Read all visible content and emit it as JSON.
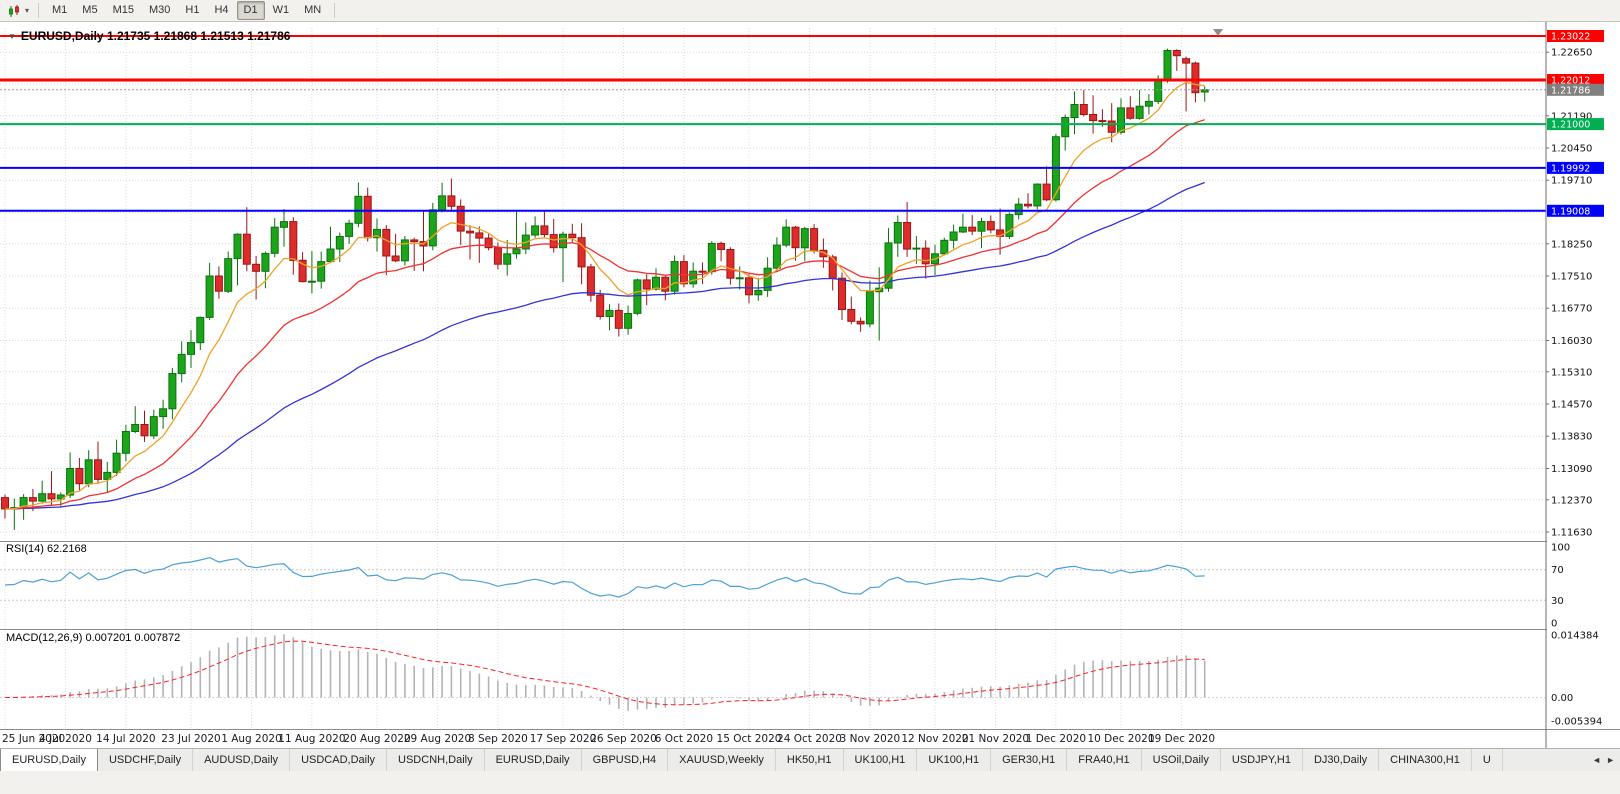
{
  "toolbar": {
    "timeframes": [
      "M1",
      "M5",
      "M15",
      "M30",
      "H1",
      "H4",
      "D1",
      "W1",
      "MN"
    ],
    "active_timeframe": "D1"
  },
  "glyphs": {
    "caret": "▾",
    "symbol_triangle": "▼",
    "tab_left": "◄",
    "tab_right": "►"
  },
  "chart_data": {
    "type": "candlestick",
    "symbol": "EURUSD",
    "timeframe": "Daily",
    "header": "EURUSD,Daily 1.21735 1.21868 1.21513 1.21786",
    "ohlc": {
      "open": "1.21735",
      "high": "1.21868",
      "low": "1.21513",
      "close": "1.21786"
    },
    "ylim": [
      1.11447,
      1.23206
    ],
    "y_ticks": [
      "1.22650",
      "1.21190",
      "1.20450",
      "1.19710",
      "1.18250",
      "1.17510",
      "1.16770",
      "1.16030",
      "1.15310",
      "1.14570",
      "1.13830",
      "1.13090",
      "1.12370",
      "1.11630"
    ],
    "y_grid_extra": [
      1.2192,
      1.1897
    ],
    "x_labels": [
      {
        "text": "25 Jun 2020",
        "bar": 0
      },
      {
        "text": "4 Jul 2020",
        "bar": 6.5
      },
      {
        "text": "14 Jul 2020",
        "bar": 13
      },
      {
        "text": "23 Jul 2020",
        "bar": 20
      },
      {
        "text": "1 Aug 2020",
        "bar": 26.5
      },
      {
        "text": "11 Aug 2020",
        "bar": 33
      },
      {
        "text": "20 Aug 2020",
        "bar": 40
      },
      {
        "text": "29 Aug 2020",
        "bar": 46.5
      },
      {
        "text": "8 Sep 2020",
        "bar": 53
      },
      {
        "text": "17 Sep 2020",
        "bar": 60
      },
      {
        "text": "26 Sep 2020",
        "bar": 66.5
      },
      {
        "text": "6 Oct 2020",
        "bar": 73
      },
      {
        "text": "15 Oct 2020",
        "bar": 80
      },
      {
        "text": "24 Oct 2020",
        "bar": 86.5
      },
      {
        "text": "3 Nov 2020",
        "bar": 93
      },
      {
        "text": "12 Nov 2020",
        "bar": 100
      },
      {
        "text": "21 Nov 2020",
        "bar": 106.5
      },
      {
        "text": "1 Dec 2020",
        "bar": 113
      },
      {
        "text": "10 Dec 2020",
        "bar": 120
      },
      {
        "text": "19 Dec 2020",
        "bar": 126.5
      }
    ],
    "hlines": [
      {
        "label": "1.23022",
        "value": 1.23022,
        "color": "#ff0000",
        "width": 2,
        "style": "solid"
      },
      {
        "label": "1.22012",
        "value": 1.22012,
        "color": "#ff0000",
        "width": 3,
        "style": "solid"
      },
      {
        "label": "1.21786",
        "value": 1.21786,
        "color": "#808080",
        "width": 1,
        "style": "bid"
      },
      {
        "label": "1.21000",
        "value": 1.21,
        "color": "#00b050",
        "width": 2,
        "style": "solid"
      },
      {
        "label": "1.19992",
        "value": 1.19992,
        "color": "#0000ff",
        "width": 2,
        "style": "solid"
      },
      {
        "label": "1.19008",
        "value": 1.19008,
        "color": "#0000ff",
        "width": 2,
        "style": "solid"
      }
    ],
    "moving_averages": [
      {
        "name": "ma-slow",
        "period": 55,
        "color": "#3434d6"
      },
      {
        "name": "ma-medium",
        "period": 21,
        "color": "#f23131"
      },
      {
        "name": "ma-fast",
        "period": 8,
        "color": "#efa229"
      }
    ],
    "candle_colors": {
      "bull_fill": "#1ca51c",
      "bull_stroke": "#0b720b",
      "bear_fill": "#dd2c2c",
      "bear_stroke": "#9b1515"
    },
    "rsi": {
      "label": "RSI(14) 62.2168",
      "value": "62.2168",
      "period": 14,
      "color": "#4aa0d5",
      "levels": [
        70,
        30
      ],
      "ylim": [
        -5,
        105
      ],
      "ticks": [
        {
          "label": "100",
          "value": 100
        },
        {
          "label": "70",
          "value": 70
        },
        {
          "label": "30",
          "value": 30
        },
        {
          "label": "0",
          "value": 0
        }
      ]
    },
    "macd": {
      "label": "MACD(12,26,9) 0.007201 0.007872",
      "main": "0.007201",
      "signal": "0.007872",
      "fast": 12,
      "slow": 26,
      "signal_period": 9,
      "hist_color": "#b3b3b3",
      "signal_color": "#ff2020",
      "ylim": [
        -0.00701,
        0.01507
      ],
      "ticks": [
        {
          "label": "0.014384",
          "value": 0.014384
        },
        {
          "label": "0.00",
          "value": 0
        },
        {
          "label": "-0.005394",
          "value": -0.005394
        }
      ]
    },
    "candles": [
      [
        1.1242,
        1.1249,
        1.1194,
        1.1216
      ],
      [
        1.1216,
        1.124,
        1.1168,
        1.1219
      ],
      [
        1.1219,
        1.125,
        1.1191,
        1.1242
      ],
      [
        1.1242,
        1.1262,
        1.1211,
        1.1234
      ],
      [
        1.1234,
        1.1281,
        1.1228,
        1.1251
      ],
      [
        1.1251,
        1.1303,
        1.1223,
        1.1239
      ],
      [
        1.1239,
        1.1254,
        1.1219,
        1.1248
      ],
      [
        1.1248,
        1.1346,
        1.1241,
        1.1309
      ],
      [
        1.1309,
        1.1333,
        1.1259,
        1.1274
      ],
      [
        1.1274,
        1.1351,
        1.1266,
        1.1329
      ],
      [
        1.1329,
        1.1371,
        1.1276,
        1.1284
      ],
      [
        1.1284,
        1.1324,
        1.1254,
        1.13
      ],
      [
        1.13,
        1.1375,
        1.1292,
        1.1344
      ],
      [
        1.1344,
        1.1409,
        1.1325,
        1.1394
      ],
      [
        1.1394,
        1.1452,
        1.139,
        1.141
      ],
      [
        1.141,
        1.1442,
        1.137,
        1.1384
      ],
      [
        1.1384,
        1.1444,
        1.1377,
        1.1428
      ],
      [
        1.1428,
        1.1467,
        1.14,
        1.1446
      ],
      [
        1.1446,
        1.154,
        1.1422,
        1.1527
      ],
      [
        1.1527,
        1.1601,
        1.1507,
        1.1571
      ],
      [
        1.1571,
        1.1627,
        1.154,
        1.1598
      ],
      [
        1.1598,
        1.1658,
        1.1581,
        1.1656
      ],
      [
        1.1656,
        1.1781,
        1.165,
        1.1751
      ],
      [
        1.1751,
        1.1773,
        1.1699,
        1.1716
      ],
      [
        1.1716,
        1.1807,
        1.1712,
        1.1791
      ],
      [
        1.1791,
        1.1849,
        1.173,
        1.1847
      ],
      [
        1.1847,
        1.1909,
        1.1762,
        1.1778
      ],
      [
        1.1778,
        1.1797,
        1.1697,
        1.1762
      ],
      [
        1.1762,
        1.1807,
        1.1723,
        1.1803
      ],
      [
        1.1803,
        1.1884,
        1.1794,
        1.1863
      ],
      [
        1.1863,
        1.1905,
        1.1818,
        1.1876
      ],
      [
        1.1876,
        1.1886,
        1.1754,
        1.1787
      ],
      [
        1.1787,
        1.1806,
        1.1736,
        1.1738
      ],
      [
        1.1738,
        1.1808,
        1.1711,
        1.1739
      ],
      [
        1.1739,
        1.1807,
        1.1722,
        1.1784
      ],
      [
        1.1784,
        1.1864,
        1.1782,
        1.1813
      ],
      [
        1.1813,
        1.1851,
        1.1783,
        1.1842
      ],
      [
        1.1842,
        1.188,
        1.1825,
        1.1872
      ],
      [
        1.1872,
        1.1966,
        1.1863,
        1.1934
      ],
      [
        1.1934,
        1.1954,
        1.183,
        1.1839
      ],
      [
        1.1839,
        1.1883,
        1.1807,
        1.1858
      ],
      [
        1.1858,
        1.1868,
        1.1753,
        1.1797
      ],
      [
        1.1797,
        1.1848,
        1.1783,
        1.1786
      ],
      [
        1.1786,
        1.1843,
        1.1775,
        1.1834
      ],
      [
        1.1834,
        1.1839,
        1.1763,
        1.183
      ],
      [
        1.183,
        1.19,
        1.1762,
        1.182
      ],
      [
        1.182,
        1.1919,
        1.181,
        1.1903
      ],
      [
        1.1903,
        1.1965,
        1.1897,
        1.1935
      ],
      [
        1.1935,
        1.1975,
        1.1898,
        1.1911
      ],
      [
        1.1911,
        1.1927,
        1.1822,
        1.1854
      ],
      [
        1.1854,
        1.1868,
        1.1789,
        1.185
      ],
      [
        1.185,
        1.1865,
        1.1781,
        1.1838
      ],
      [
        1.1838,
        1.1848,
        1.181,
        1.1816
      ],
      [
        1.1816,
        1.1828,
        1.1766,
        1.1778
      ],
      [
        1.1778,
        1.1834,
        1.1752,
        1.1802
      ],
      [
        1.1802,
        1.1899,
        1.1791,
        1.1813
      ],
      [
        1.1813,
        1.1874,
        1.1801,
        1.1845
      ],
      [
        1.1845,
        1.1888,
        1.1839,
        1.1866
      ],
      [
        1.1866,
        1.19,
        1.1838,
        1.1846
      ],
      [
        1.1846,
        1.1882,
        1.1805,
        1.1816
      ],
      [
        1.1816,
        1.1853,
        1.1737,
        1.1847
      ],
      [
        1.1847,
        1.1871,
        1.1827,
        1.1839
      ],
      [
        1.1839,
        1.1872,
        1.1732,
        1.1772
      ],
      [
        1.1772,
        1.1779,
        1.1692,
        1.1707
      ],
      [
        1.1707,
        1.1719,
        1.1651,
        1.1658
      ],
      [
        1.1658,
        1.1686,
        1.1626,
        1.1672
      ],
      [
        1.1672,
        1.1688,
        1.1612,
        1.1631
      ],
      [
        1.1631,
        1.1683,
        1.1616,
        1.1665
      ],
      [
        1.1665,
        1.1745,
        1.1661,
        1.1742
      ],
      [
        1.1742,
        1.1755,
        1.1684,
        1.1721
      ],
      [
        1.1721,
        1.1769,
        1.1717,
        1.1748
      ],
      [
        1.1748,
        1.1751,
        1.1695,
        1.1716
      ],
      [
        1.1716,
        1.1798,
        1.1708,
        1.1784
      ],
      [
        1.1784,
        1.1799,
        1.1725,
        1.1733
      ],
      [
        1.1733,
        1.1782,
        1.1724,
        1.1762
      ],
      [
        1.1762,
        1.1782,
        1.1733,
        1.1761
      ],
      [
        1.1761,
        1.1831,
        1.1754,
        1.1826
      ],
      [
        1.1826,
        1.183,
        1.1785,
        1.1812
      ],
      [
        1.1812,
        1.1817,
        1.1731,
        1.1746
      ],
      [
        1.1746,
        1.1773,
        1.172,
        1.1747
      ],
      [
        1.1747,
        1.1758,
        1.1688,
        1.1708
      ],
      [
        1.1708,
        1.1747,
        1.1694,
        1.1718
      ],
      [
        1.1718,
        1.1794,
        1.1703,
        1.1769
      ],
      [
        1.1769,
        1.184,
        1.176,
        1.1822
      ],
      [
        1.1822,
        1.1881,
        1.1817,
        1.1863
      ],
      [
        1.1863,
        1.1866,
        1.1786,
        1.1816
      ],
      [
        1.1816,
        1.1864,
        1.1786,
        1.186
      ],
      [
        1.186,
        1.187,
        1.1803,
        1.181
      ],
      [
        1.181,
        1.1837,
        1.177,
        1.1795
      ],
      [
        1.1795,
        1.18,
        1.1718,
        1.1746
      ],
      [
        1.1746,
        1.1759,
        1.165,
        1.1674
      ],
      [
        1.1674,
        1.1704,
        1.164,
        1.1647
      ],
      [
        1.1647,
        1.1656,
        1.1623,
        1.1641
      ],
      [
        1.1641,
        1.174,
        1.1633,
        1.1715
      ],
      [
        1.1715,
        1.1771,
        1.1603,
        1.1723
      ],
      [
        1.1723,
        1.1861,
        1.1715,
        1.1827
      ],
      [
        1.1827,
        1.189,
        1.1795,
        1.1874
      ],
      [
        1.1874,
        1.1921,
        1.1795,
        1.1813
      ],
      [
        1.1813,
        1.1843,
        1.1779,
        1.1815
      ],
      [
        1.1815,
        1.1833,
        1.1745,
        1.1779
      ],
      [
        1.1779,
        1.1823,
        1.1753,
        1.1802
      ],
      [
        1.1802,
        1.1839,
        1.1799,
        1.1833
      ],
      [
        1.1833,
        1.1869,
        1.1814,
        1.1852
      ],
      [
        1.1852,
        1.1894,
        1.185,
        1.1863
      ],
      [
        1.1863,
        1.1891,
        1.1845,
        1.1854
      ],
      [
        1.1854,
        1.1885,
        1.1815,
        1.1876
      ],
      [
        1.1876,
        1.189,
        1.1849,
        1.1857
      ],
      [
        1.1857,
        1.1906,
        1.18,
        1.1842
      ],
      [
        1.1842,
        1.1897,
        1.1836,
        1.1892
      ],
      [
        1.1892,
        1.193,
        1.1881,
        1.1916
      ],
      [
        1.1916,
        1.1941,
        1.1906,
        1.1912
      ],
      [
        1.1912,
        1.1964,
        1.1904,
        1.1962
      ],
      [
        1.1962,
        1.2003,
        1.1923,
        1.1926
      ],
      [
        1.1926,
        1.2077,
        1.1922,
        1.2071
      ],
      [
        1.2071,
        1.2122,
        1.2039,
        1.2115
      ],
      [
        1.2115,
        1.2175,
        1.2077,
        1.2145
      ],
      [
        1.2145,
        1.2178,
        1.2117,
        1.2122
      ],
      [
        1.2122,
        1.2166,
        1.2078,
        1.2108
      ],
      [
        1.2108,
        1.2134,
        1.2094,
        1.2107
      ],
      [
        1.2107,
        1.2148,
        1.2058,
        1.2081
      ],
      [
        1.2081,
        1.2159,
        1.2076,
        1.2137
      ],
      [
        1.2137,
        1.2164,
        1.211,
        1.2113
      ],
      [
        1.2113,
        1.2178,
        1.211,
        1.2141
      ],
      [
        1.2141,
        1.2169,
        1.2122,
        1.2152
      ],
      [
        1.2152,
        1.2212,
        1.2146,
        1.2199
      ],
      [
        1.2199,
        1.2273,
        1.2195,
        1.2269
      ],
      [
        1.2269,
        1.2272,
        1.2222,
        1.2257
      ],
      [
        1.225,
        1.2255,
        1.2129,
        1.224
      ],
      [
        1.224,
        1.2243,
        1.215,
        1.2172
      ],
      [
        1.21735,
        1.21868,
        1.21513,
        1.21786
      ]
    ]
  },
  "tabs": {
    "items": [
      "EURUSD,Daily",
      "USDCHF,Daily",
      "AUDUSD,Daily",
      "USDCAD,Daily",
      "USDCNH,Daily",
      "EURUSD,Daily",
      "GBPUSD,H4",
      "XAUUSD,Weekly",
      "HK50,H1",
      "UK100,H1",
      "UK100,H1",
      "GER30,H1",
      "FRA40,H1",
      "USOil,Daily",
      "USDJPY,H1",
      "DJ30,Daily",
      "CHINA300,H1",
      "U"
    ],
    "active_index": 0
  }
}
